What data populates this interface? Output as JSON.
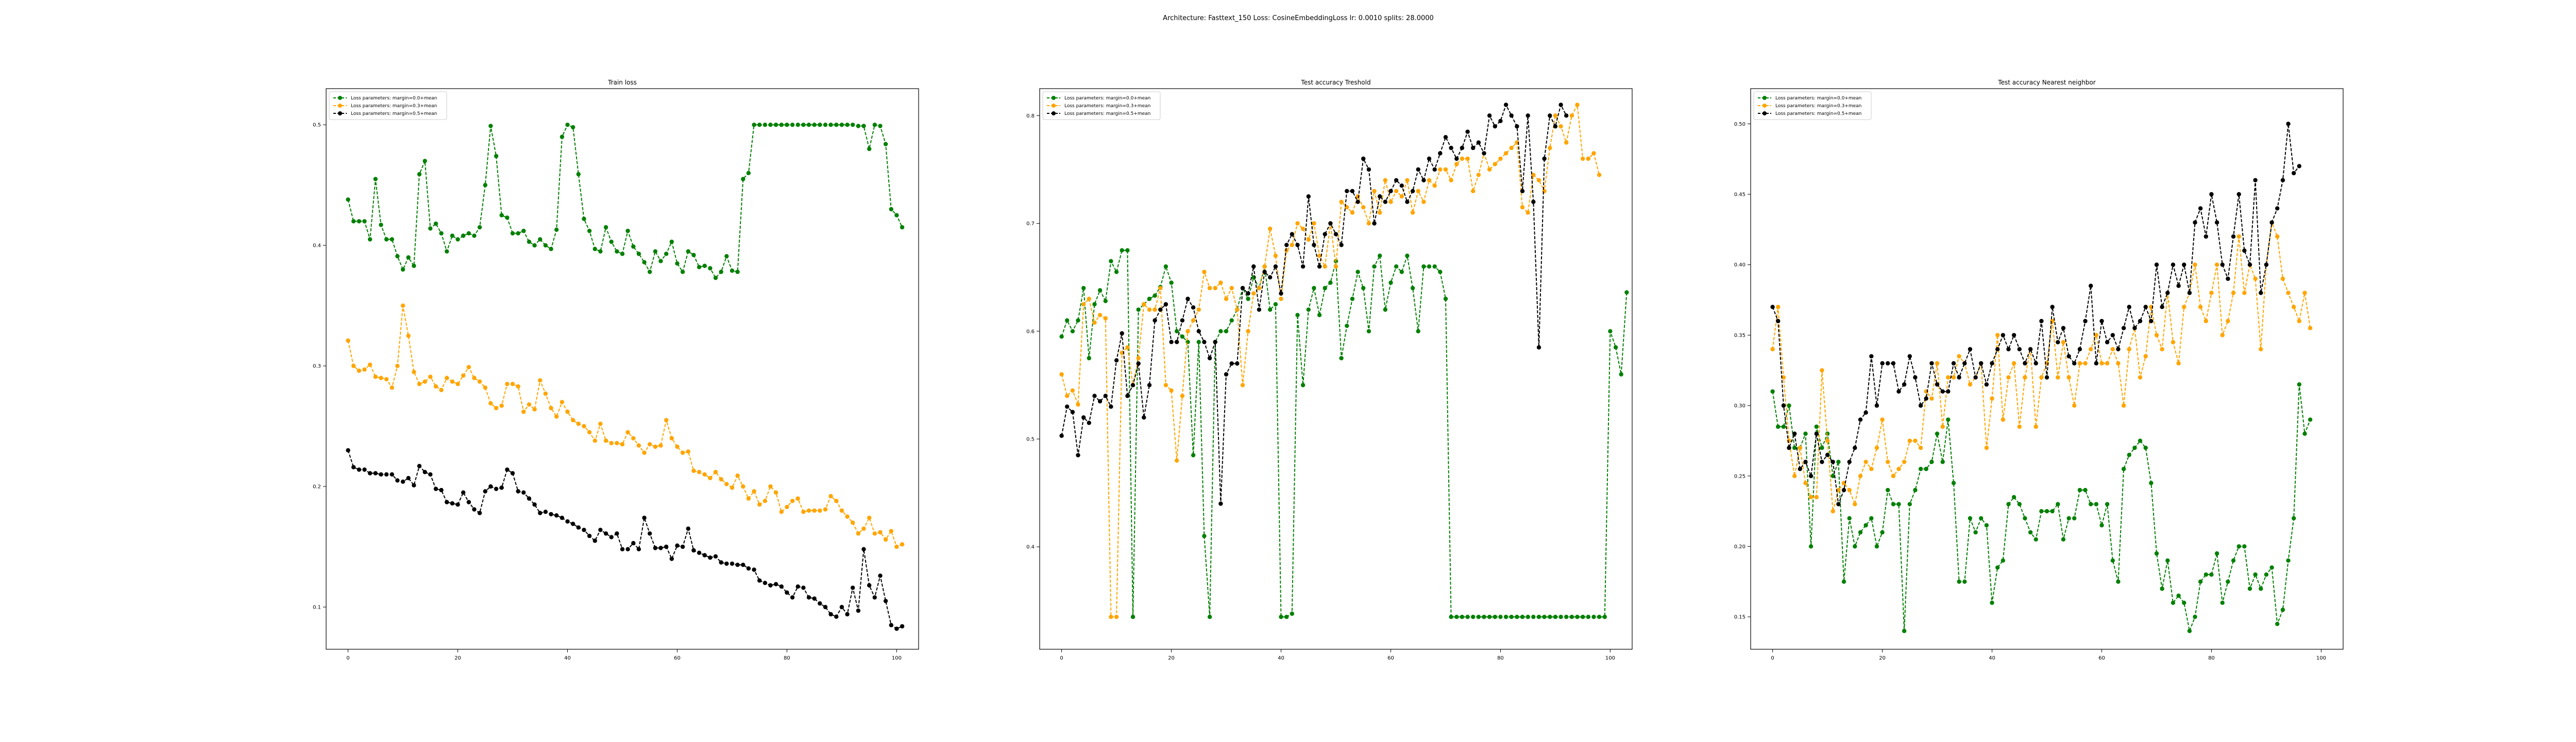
{
  "suptitle": "Architecture: Fasttext_150 Loss: CosineEmbeddingLoss lr: 0.0010 splits: 28.0000",
  "legend_labels": [
    "Loss parameters: margin=0.0+mean",
    "Loss parameters: margin=0.3+mean",
    "Loss parameters: margin=0.5+mean"
  ],
  "colors": [
    "#008000",
    "#ffa500",
    "#000000"
  ],
  "chart_data": [
    {
      "type": "line",
      "title": "Train loss",
      "xlabel": "",
      "ylabel": "",
      "xlim": [
        -4,
        104
      ],
      "ylim": [
        0.065,
        0.53
      ],
      "xticks": [
        0,
        20,
        40,
        60,
        80,
        100
      ],
      "yticks": [
        0.1,
        0.2,
        0.3,
        0.4,
        0.5
      ],
      "ytick_labels": [
        "0.1",
        "0.2",
        "0.3",
        "0.4",
        "0.5"
      ],
      "legend": "upper-left",
      "grid": false,
      "series": [
        {
          "name": "Loss parameters: margin=0.0+mean",
          "values": [
            0.438,
            0.42,
            0.42,
            0.42,
            0.405,
            0.455,
            0.417,
            0.405,
            0.405,
            0.391,
            0.38,
            0.39,
            0.383,
            0.459,
            0.47,
            0.414,
            0.418,
            0.41,
            0.395,
            0.408,
            0.405,
            0.408,
            0.41,
            0.408,
            0.415,
            0.45,
            0.499,
            0.474,
            0.425,
            0.423,
            0.41,
            0.41,
            0.412,
            0.403,
            0.4,
            0.405,
            0.4,
            0.397,
            0.413,
            0.49,
            0.5,
            0.498,
            0.459,
            0.422,
            0.412,
            0.397,
            0.395,
            0.415,
            0.403,
            0.395,
            0.393,
            0.412,
            0.399,
            0.393,
            0.386,
            0.378,
            0.395,
            0.387,
            0.393,
            0.403,
            0.385,
            0.378,
            0.395,
            0.392,
            0.382,
            0.383,
            0.381,
            0.373,
            0.378,
            0.391,
            0.379,
            0.378,
            0.455,
            0.46,
            0.5,
            0.5,
            0.5,
            0.5,
            0.5,
            0.5,
            0.5,
            0.5,
            0.5,
            0.5,
            0.5,
            0.5,
            0.5,
            0.5,
            0.5,
            0.5,
            0.5,
            0.5,
            0.5,
            0.499,
            0.499,
            0.48,
            0.5,
            0.499,
            0.484,
            0.43,
            0.425,
            0.415
          ]
        },
        {
          "name": "Loss parameters: margin=0.3+mean",
          "values": [
            0.321,
            0.3,
            0.296,
            0.297,
            0.301,
            0.291,
            0.29,
            0.289,
            0.282,
            0.3,
            0.35,
            0.325,
            0.295,
            0.285,
            0.287,
            0.291,
            0.283,
            0.28,
            0.29,
            0.287,
            0.285,
            0.292,
            0.299,
            0.29,
            0.287,
            0.282,
            0.269,
            0.265,
            0.267,
            0.285,
            0.285,
            0.283,
            0.262,
            0.268,
            0.264,
            0.288,
            0.277,
            0.265,
            0.258,
            0.27,
            0.262,
            0.255,
            0.252,
            0.25,
            0.245,
            0.238,
            0.252,
            0.238,
            0.236,
            0.236,
            0.235,
            0.245,
            0.24,
            0.234,
            0.228,
            0.235,
            0.233,
            0.234,
            0.255,
            0.24,
            0.233,
            0.228,
            0.229,
            0.213,
            0.212,
            0.21,
            0.207,
            0.212,
            0.206,
            0.202,
            0.199,
            0.209,
            0.2,
            0.19,
            0.196,
            0.185,
            0.188,
            0.2,
            0.195,
            0.179,
            0.183,
            0.188,
            0.19,
            0.179,
            0.18,
            0.18,
            0.18,
            0.181,
            0.192,
            0.188,
            0.18,
            0.175,
            0.17,
            0.161,
            0.165,
            0.174,
            0.161,
            0.162,
            0.156,
            0.163,
            0.15,
            0.152
          ]
        },
        {
          "name": "Loss parameters: margin=0.5+mean",
          "values": [
            0.23,
            0.216,
            0.214,
            0.214,
            0.211,
            0.211,
            0.21,
            0.21,
            0.21,
            0.205,
            0.204,
            0.207,
            0.201,
            0.217,
            0.212,
            0.21,
            0.198,
            0.197,
            0.187,
            0.186,
            0.185,
            0.195,
            0.187,
            0.181,
            0.178,
            0.196,
            0.2,
            0.198,
            0.199,
            0.214,
            0.211,
            0.196,
            0.195,
            0.19,
            0.185,
            0.178,
            0.179,
            0.177,
            0.176,
            0.174,
            0.171,
            0.169,
            0.166,
            0.164,
            0.159,
            0.155,
            0.164,
            0.161,
            0.158,
            0.161,
            0.148,
            0.148,
            0.153,
            0.148,
            0.174,
            0.161,
            0.149,
            0.149,
            0.15,
            0.14,
            0.151,
            0.15,
            0.165,
            0.147,
            0.145,
            0.143,
            0.141,
            0.142,
            0.137,
            0.136,
            0.136,
            0.135,
            0.135,
            0.132,
            0.131,
            0.122,
            0.12,
            0.118,
            0.119,
            0.117,
            0.112,
            0.108,
            0.117,
            0.116,
            0.108,
            0.107,
            0.103,
            0.1,
            0.094,
            0.092,
            0.1,
            0.094,
            0.116,
            0.097,
            0.148,
            0.118,
            0.108,
            0.126,
            0.105,
            0.085,
            0.082,
            0.084
          ]
        }
      ]
    },
    {
      "type": "line",
      "title": "Test accuracy Treshold",
      "xlabel": "",
      "ylabel": "",
      "xlim": [
        -4,
        104
      ],
      "ylim": [
        0.305,
        0.825
      ],
      "xticks": [
        0,
        20,
        40,
        60,
        80,
        100
      ],
      "yticks": [
        0.4,
        0.5,
        0.6,
        0.7,
        0.8
      ],
      "ytick_labels": [
        "0.4",
        "0.5",
        "0.6",
        "0.7",
        "0.8"
      ],
      "legend": "upper-left",
      "grid": false,
      "series": [
        {
          "name": "Loss parameters: margin=0.0+mean",
          "values": [
            0.595,
            0.61,
            0.6,
            0.61,
            0.64,
            0.575,
            0.625,
            0.638,
            0.628,
            0.665,
            0.655,
            0.675,
            0.675,
            0.335,
            0.62,
            0.625,
            0.63,
            0.633,
            0.641,
            0.66,
            0.645,
            0.6,
            0.595,
            0.59,
            0.485,
            0.59,
            0.41,
            0.335,
            0.59,
            0.6,
            0.6,
            0.61,
            0.62,
            0.64,
            0.63,
            0.65,
            0.64,
            0.66,
            0.62,
            0.625,
            0.335,
            0.335,
            0.338,
            0.615,
            0.55,
            0.62,
            0.64,
            0.615,
            0.64,
            0.645,
            0.665,
            0.575,
            0.605,
            0.63,
            0.655,
            0.64,
            0.6,
            0.66,
            0.67,
            0.62,
            0.645,
            0.66,
            0.655,
            0.67,
            0.64,
            0.6,
            0.66,
            0.66,
            0.66,
            0.655,
            0.63,
            0.335,
            0.335,
            0.335,
            0.335,
            0.335,
            0.335,
            0.335,
            0.335,
            0.335,
            0.335,
            0.335,
            0.335,
            0.335,
            0.335,
            0.335,
            0.335,
            0.335,
            0.335,
            0.335,
            0.335,
            0.335,
            0.335,
            0.335,
            0.335,
            0.335,
            0.335,
            0.335,
            0.335,
            0.335,
            0.6,
            0.585,
            0.56,
            0.636
          ]
        },
        {
          "name": "Loss parameters: margin=0.3+mean",
          "values": [
            0.56,
            0.54,
            0.545,
            0.532,
            0.625,
            0.63,
            0.608,
            0.615,
            0.612,
            0.335,
            0.335,
            0.58,
            0.585,
            0.55,
            0.575,
            0.625,
            0.62,
            0.62,
            0.64,
            0.55,
            0.545,
            0.48,
            0.54,
            0.6,
            0.61,
            0.62,
            0.655,
            0.64,
            0.64,
            0.645,
            0.63,
            0.64,
            0.62,
            0.55,
            0.6,
            0.635,
            0.64,
            0.66,
            0.695,
            0.67,
            0.63,
            0.675,
            0.68,
            0.7,
            0.695,
            0.685,
            0.7,
            0.67,
            0.66,
            0.7,
            0.66,
            0.72,
            0.715,
            0.71,
            0.725,
            0.715,
            0.7,
            0.73,
            0.71,
            0.74,
            0.72,
            0.73,
            0.725,
            0.74,
            0.71,
            0.73,
            0.72,
            0.74,
            0.735,
            0.75,
            0.75,
            0.74,
            0.755,
            0.76,
            0.76,
            0.73,
            0.745,
            0.765,
            0.75,
            0.755,
            0.76,
            0.765,
            0.77,
            0.775,
            0.715,
            0.71,
            0.745,
            0.74,
            0.73,
            0.77,
            0.8,
            0.79,
            0.775,
            0.8,
            0.81,
            0.76,
            0.76,
            0.765,
            0.745
          ]
        },
        {
          "name": "Loss parameters: margin=0.5+mean",
          "values": [
            0.503,
            0.53,
            0.525,
            0.485,
            0.52,
            0.515,
            0.54,
            0.535,
            0.54,
            0.53,
            0.573,
            0.598,
            0.54,
            0.55,
            0.57,
            0.52,
            0.55,
            0.61,
            0.62,
            0.625,
            0.59,
            0.59,
            0.61,
            0.63,
            0.622,
            0.6,
            0.59,
            0.575,
            0.59,
            0.44,
            0.56,
            0.57,
            0.57,
            0.64,
            0.635,
            0.66,
            0.62,
            0.655,
            0.65,
            0.66,
            0.635,
            0.68,
            0.69,
            0.68,
            0.66,
            0.725,
            0.68,
            0.66,
            0.69,
            0.7,
            0.69,
            0.68,
            0.73,
            0.73,
            0.72,
            0.76,
            0.75,
            0.7,
            0.725,
            0.72,
            0.73,
            0.74,
            0.735,
            0.72,
            0.73,
            0.75,
            0.74,
            0.76,
            0.75,
            0.765,
            0.78,
            0.77,
            0.76,
            0.77,
            0.785,
            0.77,
            0.775,
            0.765,
            0.8,
            0.79,
            0.795,
            0.81,
            0.8,
            0.79,
            0.73,
            0.8,
            0.72,
            0.585,
            0.76,
            0.8,
            0.79,
            0.81,
            0.8
          ]
        }
      ]
    },
    {
      "type": "line",
      "title": "Test accuracy Nearest neighbor",
      "xlabel": "",
      "ylabel": "",
      "xlim": [
        -4,
        104
      ],
      "ylim": [
        0.127,
        0.525
      ],
      "xticks": [
        0,
        20,
        40,
        60,
        80,
        100
      ],
      "yticks": [
        0.15,
        0.2,
        0.25,
        0.3,
        0.35,
        0.4,
        0.45,
        0.5
      ],
      "ytick_labels": [
        "0.15",
        "0.20",
        "0.25",
        "0.30",
        "0.35",
        "0.40",
        "0.45",
        "0.50"
      ],
      "legend": "upper-left",
      "grid": false,
      "series": [
        {
          "name": "Loss parameters: margin=0.0+mean",
          "values": [
            0.31,
            0.285,
            0.285,
            0.3,
            0.27,
            0.27,
            0.28,
            0.2,
            0.285,
            0.27,
            0.28,
            0.25,
            0.26,
            0.175,
            0.22,
            0.2,
            0.21,
            0.215,
            0.22,
            0.2,
            0.21,
            0.24,
            0.23,
            0.23,
            0.14,
            0.23,
            0.24,
            0.255,
            0.255,
            0.26,
            0.28,
            0.26,
            0.29,
            0.245,
            0.175,
            0.175,
            0.22,
            0.21,
            0.22,
            0.215,
            0.16,
            0.185,
            0.19,
            0.23,
            0.235,
            0.23,
            0.22,
            0.21,
            0.205,
            0.225,
            0.225,
            0.225,
            0.23,
            0.205,
            0.22,
            0.22,
            0.24,
            0.24,
            0.23,
            0.23,
            0.215,
            0.23,
            0.19,
            0.175,
            0.255,
            0.265,
            0.27,
            0.275,
            0.27,
            0.245,
            0.195,
            0.17,
            0.19,
            0.16,
            0.165,
            0.16,
            0.14,
            0.15,
            0.175,
            0.18,
            0.18,
            0.195,
            0.16,
            0.175,
            0.19,
            0.2,
            0.2,
            0.17,
            0.18,
            0.17,
            0.18,
            0.185,
            0.145,
            0.155,
            0.19,
            0.22,
            0.315,
            0.28,
            0.29
          ]
        },
        {
          "name": "Loss parameters: margin=0.3+mean",
          "values": [
            0.34,
            0.37,
            0.32,
            0.275,
            0.25,
            0.27,
            0.245,
            0.235,
            0.235,
            0.325,
            0.275,
            0.225,
            0.24,
            0.245,
            0.24,
            0.23,
            0.25,
            0.26,
            0.255,
            0.27,
            0.29,
            0.26,
            0.25,
            0.255,
            0.26,
            0.275,
            0.275,
            0.27,
            0.31,
            0.305,
            0.33,
            0.285,
            0.32,
            0.32,
            0.335,
            0.33,
            0.315,
            0.32,
            0.33,
            0.27,
            0.305,
            0.35,
            0.29,
            0.32,
            0.33,
            0.285,
            0.32,
            0.34,
            0.285,
            0.32,
            0.33,
            0.36,
            0.32,
            0.345,
            0.32,
            0.3,
            0.33,
            0.33,
            0.34,
            0.35,
            0.33,
            0.33,
            0.34,
            0.33,
            0.3,
            0.34,
            0.355,
            0.32,
            0.335,
            0.37,
            0.35,
            0.34,
            0.38,
            0.345,
            0.33,
            0.37,
            0.38,
            0.4,
            0.37,
            0.36,
            0.38,
            0.4,
            0.35,
            0.36,
            0.38,
            0.42,
            0.38,
            0.4,
            0.39,
            0.34,
            0.4,
            0.43,
            0.42,
            0.39,
            0.38,
            0.37,
            0.36,
            0.38,
            0.355
          ]
        },
        {
          "name": "Loss parameters: margin=0.5+mean",
          "values": [
            0.37,
            0.36,
            0.3,
            0.27,
            0.28,
            0.255,
            0.26,
            0.25,
            0.28,
            0.26,
            0.265,
            0.26,
            0.23,
            0.24,
            0.26,
            0.27,
            0.29,
            0.295,
            0.335,
            0.3,
            0.33,
            0.33,
            0.33,
            0.31,
            0.315,
            0.335,
            0.32,
            0.3,
            0.305,
            0.33,
            0.315,
            0.31,
            0.31,
            0.33,
            0.32,
            0.33,
            0.34,
            0.32,
            0.33,
            0.315,
            0.33,
            0.34,
            0.35,
            0.34,
            0.35,
            0.34,
            0.33,
            0.34,
            0.33,
            0.36,
            0.32,
            0.37,
            0.345,
            0.355,
            0.335,
            0.33,
            0.34,
            0.36,
            0.385,
            0.33,
            0.36,
            0.345,
            0.35,
            0.34,
            0.355,
            0.37,
            0.355,
            0.36,
            0.37,
            0.36,
            0.4,
            0.37,
            0.38,
            0.4,
            0.385,
            0.4,
            0.38,
            0.43,
            0.44,
            0.42,
            0.45,
            0.43,
            0.4,
            0.39,
            0.42,
            0.45,
            0.41,
            0.4,
            0.46,
            0.38,
            0.4,
            0.43,
            0.44,
            0.46,
            0.5,
            0.465,
            0.47
          ]
        }
      ]
    }
  ]
}
